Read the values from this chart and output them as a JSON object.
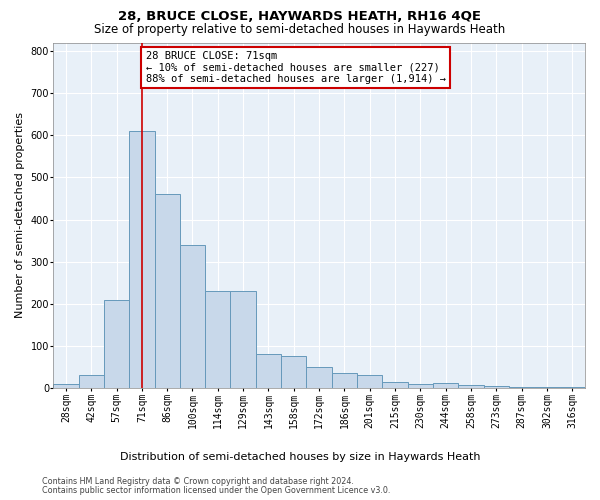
{
  "title": "28, BRUCE CLOSE, HAYWARDS HEATH, RH16 4QE",
  "subtitle": "Size of property relative to semi-detached houses in Haywards Heath",
  "xlabel": "Distribution of semi-detached houses by size in Haywards Heath",
  "ylabel": "Number of semi-detached properties",
  "footnote1": "Contains HM Land Registry data © Crown copyright and database right 2024.",
  "footnote2": "Contains public sector information licensed under the Open Government Licence v3.0.",
  "annotation_title": "28 BRUCE CLOSE: 71sqm",
  "annotation_line1": "← 10% of semi-detached houses are smaller (227)",
  "annotation_line2": "88% of semi-detached houses are larger (1,914) →",
  "property_bin_index": 3,
  "categories": [
    "28sqm",
    "42sqm",
    "57sqm",
    "71sqm",
    "86sqm",
    "100sqm",
    "114sqm",
    "129sqm",
    "143sqm",
    "158sqm",
    "172sqm",
    "186sqm",
    "201sqm",
    "215sqm",
    "230sqm",
    "244sqm",
    "258sqm",
    "273sqm",
    "287sqm",
    "302sqm",
    "316sqm"
  ],
  "values": [
    10,
    30,
    210,
    610,
    460,
    340,
    230,
    230,
    80,
    75,
    50,
    35,
    30,
    15,
    10,
    12,
    7,
    5,
    3,
    3,
    3
  ],
  "bar_color": "#c8d8ea",
  "bar_edge_color": "#6699bb",
  "highlight_line_color": "#cc0000",
  "annotation_box_color": "#cc0000",
  "ylim": [
    0,
    820
  ],
  "yticks": [
    0,
    100,
    200,
    300,
    400,
    500,
    600,
    700,
    800
  ],
  "background_color": "#e8f0f8",
  "title_fontsize": 9.5,
  "subtitle_fontsize": 8.5,
  "axis_label_fontsize": 8,
  "tick_fontsize": 7,
  "annotation_fontsize": 7.5,
  "footnote_fontsize": 5.8
}
